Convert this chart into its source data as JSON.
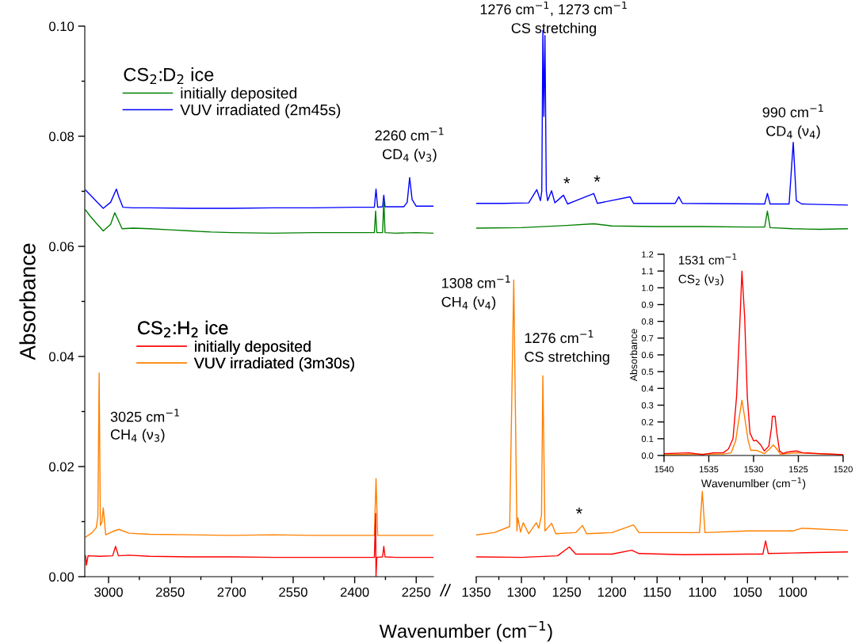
{
  "chart_data": [
    {
      "type": "line",
      "xlabel": "Wavenumber (cm$^{−1}$)",
      "ylabel": "Absorbance",
      "xlim": [
        3058,
        2208
      ],
      "ylim": [
        0,
        0.1
      ],
      "xticks": [
        3000,
        {
          "value": 2925,
          "label": null
        },
        2850,
        {
          "value": 2775,
          "label": null
        },
        2700,
        {
          "value": 2625,
          "label": null
        },
        2550,
        {
          "value": 2475,
          "label": null
        },
        2400,
        {
          "value": 2325,
          "label": null
        },
        2250
      ],
      "yticks": [
        {
          "value": 0,
          "label": "0.00"
        },
        {
          "value": 0.01,
          "label": null
        },
        {
          "value": 0.02,
          "label": "0.02"
        },
        {
          "value": 0.03,
          "label": null
        },
        {
          "value": 0.04,
          "label": "0.04"
        },
        {
          "value": 0.05,
          "label": null
        },
        {
          "value": 0.06,
          "label": "0.06"
        },
        {
          "value": 0.07,
          "label": null
        },
        {
          "value": 0.08,
          "label": "0.08"
        },
        {
          "value": 0.09,
          "label": null
        },
        {
          "value": 0.1,
          "label": "0.10"
        }
      ],
      "legend": "top left",
      "grid": false,
      "marker": "none",
      "line_style": "solid",
      "annotations": [
        {
          "text": "2260 cm$^{−1}$",
          "x": 2266,
          "y": 0.0725
        },
        {
          "text": "CD$_{4}$ (ν$_{3}$)",
          "x": 2266,
          "y": 0.0725
        },
        {
          "text": "3025 cm$^{−1}$",
          "x": 3023,
          "y": 0.0288
        },
        {
          "text": "CH$_{4}$ (ν$_{3}$)",
          "x": 3023,
          "y": 0.0256
        },
        "CS$_{2}$:D$_{2}$ ice",
        "CS$_{2}$:H$_{2}$ ice"
      ],
      "series": [
        {
          "name": "initially deposited",
          "color": "#008000",
          "x": [
            3056,
            3045,
            3030,
            3013,
            2995,
            2985,
            2978,
            2967,
            2940,
            2900,
            2850,
            2800,
            2750,
            2700,
            2600,
            2500,
            2400,
            2352,
            2349,
            2346,
            2332,
            2329,
            2326,
            2300,
            2250,
            2208
          ],
          "values": [
            0.0666,
            0.0655,
            0.0642,
            0.0628,
            0.064,
            0.0661,
            0.065,
            0.0632,
            0.0633,
            0.0632,
            0.063,
            0.0628,
            0.0626,
            0.0625,
            0.0624,
            0.0625,
            0.0625,
            0.0625,
            0.0664,
            0.0625,
            0.0625,
            0.0683,
            0.0625,
            0.0624,
            0.0625,
            0.0624
          ]
        },
        {
          "name": "VUV irradiated (2m45s)",
          "color": "#0000ff",
          "x": [
            3056,
            3040,
            3025,
            3013,
            2995,
            2981,
            2975,
            2965,
            2940,
            2900,
            2800,
            2700,
            2600,
            2500,
            2400,
            2352,
            2348,
            2344,
            2332,
            2329,
            2326,
            2280,
            2272,
            2266,
            2260,
            2250,
            2230,
            2208
          ],
          "values": [
            0.0702,
            0.069,
            0.0678,
            0.0669,
            0.068,
            0.0704,
            0.069,
            0.0671,
            0.067,
            0.067,
            0.0669,
            0.0669,
            0.067,
            0.067,
            0.0671,
            0.0671,
            0.0704,
            0.0671,
            0.0672,
            0.0693,
            0.0672,
            0.0672,
            0.068,
            0.0725,
            0.0685,
            0.0673,
            0.0673,
            0.0673
          ]
        },
        {
          "name": "initially deposited",
          "color": "#ff0000",
          "x": [
            3056,
            3054,
            3050,
            3020,
            2990,
            2983,
            2976,
            2950,
            2900,
            2800,
            2700,
            2600,
            2500,
            2400,
            2352,
            2349,
            2348,
            2346,
            2332,
            2329,
            2326,
            2300,
            2208
          ],
          "values": [
            0.0038,
            0.0021,
            0.0038,
            0.0037,
            0.0038,
            0.0055,
            0.0038,
            0.0039,
            0.0037,
            0.0036,
            0.0036,
            0.0035,
            0.0035,
            0.0035,
            0.0035,
            0.0115,
            0.0,
            0.0035,
            0.0036,
            0.0055,
            0.0036,
            0.0035,
            0.0035
          ]
        },
        {
          "name": "VUV irradiated (3m30s)",
          "color": "#ff8000",
          "x": [
            3056,
            3040,
            3030,
            3026,
            3023,
            3020,
            3016,
            3013,
            3007,
            2990,
            2975,
            2950,
            2900,
            2800,
            2700,
            2600,
            2500,
            2400,
            2352,
            2348,
            2344,
            2300,
            2250,
            2208
          ],
          "values": [
            0.0072,
            0.008,
            0.0089,
            0.011,
            0.037,
            0.0093,
            0.01,
            0.0125,
            0.0076,
            0.0082,
            0.0086,
            0.0079,
            0.0077,
            0.0076,
            0.0075,
            0.0076,
            0.0075,
            0.0075,
            0.0075,
            0.0178,
            0.0075,
            0.0075,
            0.0075,
            0.0075
          ]
        }
      ]
    },
    {
      "type": "line",
      "xlim": [
        1350,
        939
      ],
      "ylim": [
        0,
        0.1
      ],
      "tick_labels": "x",
      "grid": false,
      "marker": "none",
      "line_style": "solid",
      "xticks": [
        1350,
        {
          "value": 1325,
          "label": null
        },
        1300,
        {
          "value": 1275,
          "label": null
        },
        1250,
        {
          "value": 1225,
          "label": null
        },
        1200,
        {
          "value": 1175,
          "label": null
        },
        1150,
        {
          "value": 1125,
          "label": null
        },
        1100,
        {
          "value": 1075,
          "label": null
        },
        1050,
        {
          "value": 1025,
          "label": null
        },
        1000,
        {
          "value": 975,
          "label": null
        },
        {
          "value": 950,
          "label": null
        }
      ],
      "annotations": [
        {
          "text": "1276 cm$^{−1}$, 1273 cm$^{−1}$",
          "x": 1276.3,
          "y": 0.0992
        },
        {
          "text": "CS stretching",
          "x": 1276.3,
          "y": 0.0992
        },
        {
          "text": "990 cm$^{−1}$",
          "x": 999.4,
          "y": 0.0789
        },
        {
          "text": "CD$_{4}$ (ν$_{4}$)",
          "x": 999.4,
          "y": 0.0789
        },
        {
          "text": "1308 cm$^{−1}$",
          "x": 1308.5,
          "y": 0.0539
        },
        {
          "text": "CH$_{4}$ (ν$_{4}$)",
          "x": 1308.5,
          "y": 0.0539
        },
        {
          "text": "1276 cm$^{−1}$",
          "x": 1276.3,
          "y": 0.0365
        },
        {
          "text": "CS stretching",
          "x": 1276.3,
          "y": 0.0365
        },
        {
          "text": "*",
          "x": 1253.5,
          "y": 0.0693
        },
        {
          "text": "*",
          "x": 1220,
          "y": 0.0696
        },
        {
          "text": "*",
          "x": 1232.5,
          "y": 0.0093
        }
      ],
      "series": [
        {
          "color": "#008000",
          "x": [
            1350,
            1300,
            1250,
            1220,
            1200,
            1150,
            1100,
            1050,
            1031,
            1028,
            1025,
            1000,
            970,
            939
          ],
          "values": [
            0.0633,
            0.0634,
            0.0638,
            0.0641,
            0.0637,
            0.0636,
            0.0636,
            0.0635,
            0.0635,
            0.0664,
            0.0634,
            0.0632,
            0.0631,
            0.0632
          ]
        },
        {
          "color": "#0000ff",
          "x": [
            1350,
            1320,
            1292,
            1283,
            1279,
            1277.5,
            1276.3,
            1275.2,
            1274,
            1272.5,
            1271,
            1266.7,
            1263,
            1253.5,
            1249,
            1220,
            1216,
            1180,
            1176,
            1130,
            1126,
            1122,
            1031,
            1028,
            1025,
            1004,
            999.4,
            996,
            990,
            970,
            939
          ],
          "values": [
            0.0678,
            0.0678,
            0.0679,
            0.0703,
            0.0683,
            0.07,
            0.0992,
            0.0836,
            0.0983,
            0.07,
            0.0683,
            0.0701,
            0.0679,
            0.0693,
            0.0677,
            0.0696,
            0.0678,
            0.069,
            0.0678,
            0.0678,
            0.069,
            0.0678,
            0.0677,
            0.0696,
            0.0677,
            0.0677,
            0.0789,
            0.0683,
            0.0677,
            0.0676,
            0.0675
          ]
        },
        {
          "color": "#ff0000",
          "x": [
            1350,
            1300,
            1260,
            1247,
            1240,
            1200,
            1178,
            1170,
            1120,
            1050,
            1033,
            1030,
            1027,
            1000,
            939
          ],
          "values": [
            0.0036,
            0.0035,
            0.0038,
            0.0054,
            0.0041,
            0.0041,
            0.0048,
            0.0042,
            0.004,
            0.0041,
            0.0041,
            0.0065,
            0.0042,
            0.0043,
            0.0045
          ]
        },
        {
          "color": "#ff8000",
          "x": [
            1350,
            1330,
            1313,
            1308.5,
            1305,
            1304,
            1301,
            1298,
            1292,
            1283.6,
            1280.7,
            1277.8,
            1276.3,
            1274,
            1266.7,
            1262,
            1240,
            1232.5,
            1228,
            1200,
            1176,
            1170,
            1103,
            1100,
            1097,
            1050,
            1000,
            990,
            939
          ],
          "values": [
            0.0076,
            0.008,
            0.0091,
            0.0539,
            0.0083,
            0.0107,
            0.0081,
            0.0098,
            0.0078,
            0.0098,
            0.0088,
            0.0112,
            0.0365,
            0.0083,
            0.0097,
            0.0078,
            0.008,
            0.0093,
            0.0078,
            0.008,
            0.0094,
            0.008,
            0.008,
            0.0155,
            0.008,
            0.0083,
            0.0083,
            0.0088,
            0.0084
          ]
        }
      ]
    },
    {
      "type": "line",
      "xlabel": "Wavenumlber (cm$^{−1}$)",
      "ylabel": "Absorbance",
      "xlim": [
        1540,
        1520
      ],
      "ylim": [
        0,
        1.2
      ],
      "grid": false,
      "marker": "none",
      "line_style": "solid",
      "xticks": [
        1540,
        1535,
        1530,
        1525,
        1520
      ],
      "yticks": [
        {
          "value": 0,
          "label": "0.0"
        },
        {
          "value": 0.1,
          "label": "0.1"
        },
        {
          "value": 0.2,
          "label": "0.2"
        },
        {
          "value": 0.3,
          "label": "0.3"
        },
        {
          "value": 0.4,
          "label": "0.4"
        },
        {
          "value": 0.5,
          "label": "0.5"
        },
        {
          "value": 0.6,
          "label": "0.6"
        },
        {
          "value": 0.7,
          "label": "0.7"
        },
        {
          "value": 0.8,
          "label": "0.8"
        },
        {
          "value": 0.9,
          "label": "0.9"
        },
        {
          "value": 1.0,
          "label": "1.0"
        },
        {
          "value": 1.1,
          "label": "1.1"
        },
        {
          "value": 1.2,
          "label": "1.2"
        }
      ],
      "annotations": [
        {
          "text": "1531 cm$^{−1}$",
          "x": 1531.3,
          "y": 1.1
        },
        {
          "text": "CS$_{2}$ (ν$_{3}$)",
          "x": 1531.3,
          "y": 1.1
        }
      ],
      "series": [
        {
          "color": "#ff0000",
          "x": [
            1540,
            1537.2,
            1535.7,
            1534.5,
            1533.4,
            1532.8,
            1532.3,
            1531.9,
            1531.5,
            1531.3,
            1531.0,
            1530.7,
            1530.4,
            1530.0,
            1529.7,
            1529.2,
            1528.8,
            1528.3,
            1528.0,
            1527.9,
            1527.6,
            1527.4,
            1527.1,
            1526.7,
            1526.3,
            1525.2,
            1524.5,
            1522.7,
            1520
          ],
          "values": [
            0.011,
            0.016,
            0.005,
            0.016,
            0.016,
            0.039,
            0.1,
            0.35,
            0.83,
            1.1,
            0.83,
            0.35,
            0.134,
            0.087,
            0.091,
            0.063,
            0.027,
            0.055,
            0.165,
            0.234,
            0.234,
            0.134,
            0.027,
            0.011,
            0.02,
            0.027,
            0.016,
            0.011,
            0.005
          ]
        },
        {
          "color": "#ff8000",
          "x": [
            1540,
            1535,
            1533.4,
            1532.5,
            1532.0,
            1531.6,
            1531.3,
            1531.0,
            1530.6,
            1530.3,
            1529.7,
            1528.8,
            1528.2,
            1527.8,
            1527.4,
            1527.0,
            1525.2,
            1520
          ],
          "values": [
            0.005,
            0.008,
            0.009,
            0.016,
            0.087,
            0.23,
            0.33,
            0.23,
            0.087,
            0.031,
            0.031,
            0.011,
            0.039,
            0.063,
            0.039,
            0.008,
            0.016,
            0.005
          ]
        }
      ]
    }
  ]
}
